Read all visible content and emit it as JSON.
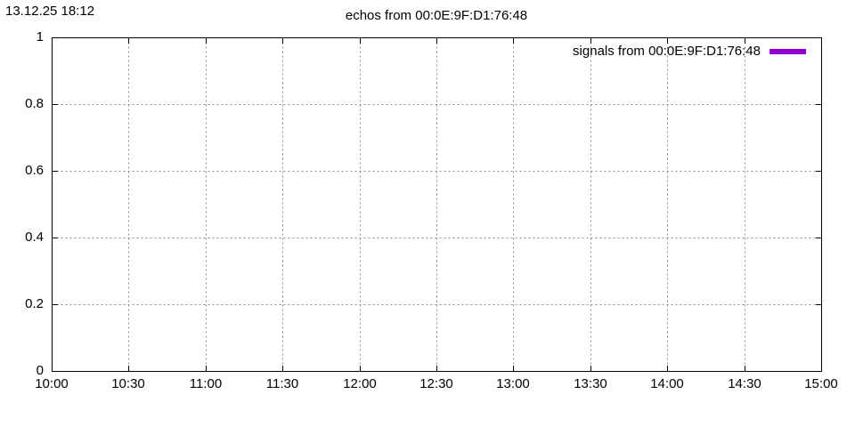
{
  "meta": {
    "timestamp": "13.12.25 18:12"
  },
  "chart_data": {
    "type": "line",
    "title": "echos from 00:0E:9F:D1:76:48",
    "xlabel": "",
    "ylabel": "",
    "x_tick_labels": [
      "10:00",
      "10:30",
      "11:00",
      "11:30",
      "12:00",
      "12:30",
      "13:00",
      "13:30",
      "14:00",
      "14:30",
      "15:00"
    ],
    "y_tick_labels": [
      "0",
      "0.2",
      "0.4",
      "0.6",
      "0.8",
      "1"
    ],
    "xlim": [
      "10:00",
      "15:00"
    ],
    "ylim": [
      0,
      1
    ],
    "grid": true,
    "grid_style": "dotted",
    "legend_position": "top-right-inside",
    "series": [
      {
        "name": "signals from 00:0E:9F:D1:76:48",
        "color": "#9400d3",
        "x": [],
        "y": []
      }
    ],
    "colors": {
      "axis": "#000000",
      "grid": "#8c8c8c",
      "text": "#000000",
      "background": "#ffffff"
    }
  }
}
